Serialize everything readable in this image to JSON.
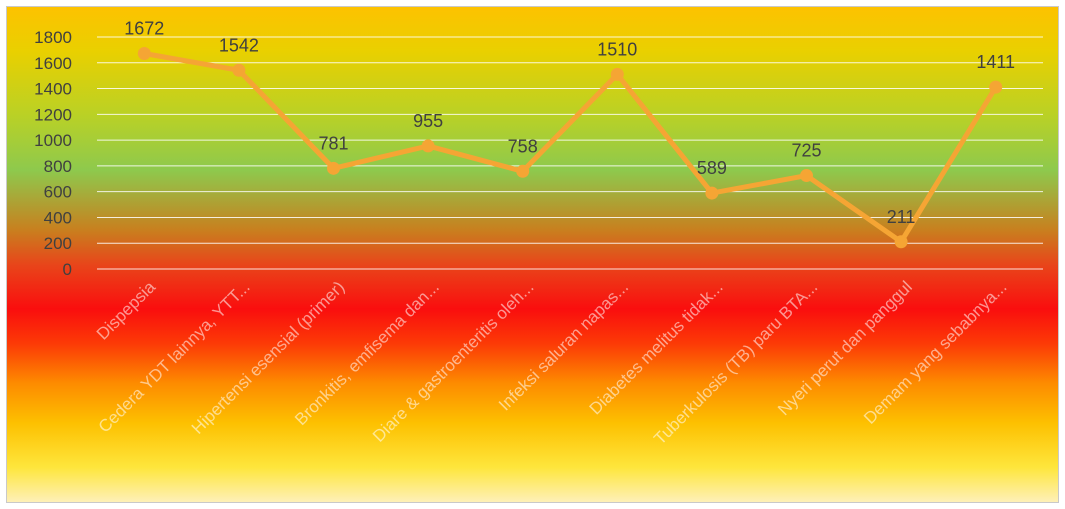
{
  "chart_data": {
    "type": "line",
    "categories": [
      "Dispepsia",
      "Cedera YDT lainnya, YTT...",
      "Hipertensi esensial (primer)",
      "Bronkitis, emfisema dan...",
      "Diare & gastroenteritis oleh...",
      "Infeksi saluran napas...",
      "Diabetes melitus tidak...",
      "Tuberkulosis (TB) paru BTA...",
      "Nyeri perut dan panggul",
      "Demam yang sebabnya..."
    ],
    "series": [
      {
        "values": [
          1672,
          1542,
          781,
          955,
          758,
          1510,
          589,
          725,
          211,
          1411
        ]
      }
    ],
    "data_labels": [
      "1672",
      "1542",
      "781",
      "955",
      "758",
      "1510",
      "589",
      "725",
      "211",
      "1411"
    ],
    "y_ticks": [
      "0",
      "200",
      "400",
      "600",
      "800",
      "1000",
      "1200",
      "1400",
      "1600",
      "1800"
    ],
    "ylim": [
      0,
      1800
    ],
    "grid": true,
    "legend": "none",
    "line_color": "#f5a534"
  }
}
